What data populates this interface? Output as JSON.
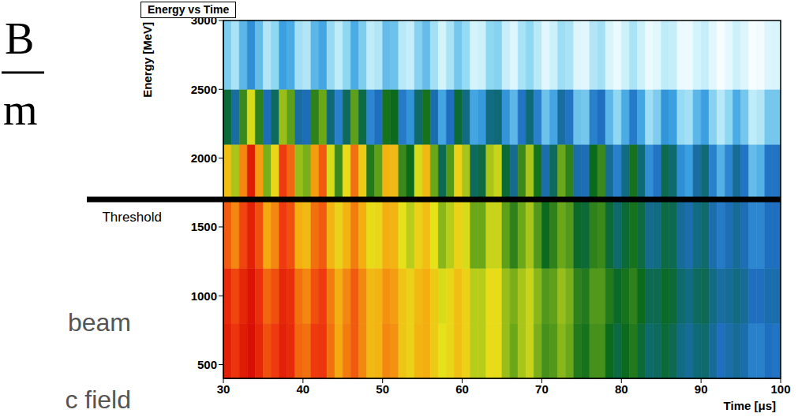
{
  "chart_data": {
    "type": "heatmap",
    "title": "Energy vs Time",
    "x_label": "Time [μs]",
    "y_label": "Energy [MeV]",
    "xlim": [
      30,
      100
    ],
    "xticks": [
      30,
      40,
      50,
      60,
      70,
      80,
      90,
      100
    ],
    "ylim": [
      400,
      3000
    ],
    "yticks": [
      500,
      1000,
      1500,
      2000,
      2500,
      3000
    ],
    "grid": false,
    "zlim": [
      0,
      100
    ],
    "x_edges": [
      30,
      31,
      32,
      33,
      34,
      35,
      36,
      37,
      38,
      39,
      40,
      41,
      42,
      43,
      44,
      45,
      46,
      47,
      48,
      49,
      50,
      51,
      52,
      53,
      54,
      55,
      56,
      57,
      58,
      59,
      60,
      61,
      62,
      63,
      64,
      65,
      66,
      67,
      68,
      69,
      70,
      71,
      72,
      73,
      74,
      75,
      76,
      77,
      78,
      79,
      80,
      81,
      82,
      83,
      84,
      85,
      86,
      87,
      88,
      89,
      90,
      91,
      92,
      93,
      94,
      95,
      96,
      97,
      98,
      99,
      100
    ],
    "y_edges": [
      400,
      800,
      1200,
      1700,
      2100,
      2500,
      3000
    ],
    "z": [
      [
        93,
        89,
        94,
        97,
        92,
        86,
        88,
        93,
        91,
        84,
        83,
        88,
        89,
        83,
        78,
        82,
        85,
        81,
        75,
        76,
        81,
        80,
        73,
        71,
        76,
        77,
        72,
        68,
        70,
        74,
        71,
        65,
        65,
        69,
        69,
        63,
        60,
        64,
        66,
        61,
        57,
        58,
        62,
        60,
        54,
        53,
        57,
        57,
        52,
        49,
        52,
        54,
        50,
        46,
        47,
        50,
        48,
        44,
        42,
        45,
        46,
        42,
        38,
        40,
        42,
        40,
        35,
        35,
        38,
        37
      ],
      [
        91,
        87,
        92,
        96,
        90,
        84,
        86,
        92,
        90,
        83,
        81,
        86,
        88,
        82,
        77,
        81,
        85,
        81,
        75,
        76,
        80,
        79,
        73,
        71,
        75,
        77,
        72,
        67,
        70,
        74,
        71,
        65,
        65,
        69,
        69,
        63,
        61,
        64,
        66,
        62,
        58,
        59,
        63,
        61,
        55,
        54,
        58,
        58,
        54,
        51,
        53,
        55,
        52,
        48,
        48,
        51,
        50,
        46,
        44,
        47,
        48,
        44,
        41,
        42,
        44,
        42,
        38,
        38,
        40,
        40
      ],
      [
        85,
        81,
        87,
        93,
        86,
        78,
        81,
        88,
        86,
        77,
        75,
        83,
        85,
        76,
        71,
        76,
        82,
        77,
        69,
        70,
        77,
        76,
        68,
        65,
        71,
        74,
        68,
        62,
        65,
        71,
        67,
        60,
        60,
        66,
        66,
        59,
        55,
        60,
        64,
        58,
        52,
        55,
        60,
        58,
        51,
        50,
        55,
        56,
        50,
        46,
        50,
        53,
        49,
        43,
        44,
        49,
        48,
        42,
        40,
        44,
        46,
        40,
        36,
        39,
        42,
        39,
        34,
        34,
        38,
        38
      ],
      [
        74,
        64,
        81,
        94,
        79,
        61,
        70,
        88,
        84,
        63,
        61,
        79,
        85,
        67,
        56,
        69,
        83,
        72,
        54,
        59,
        76,
        75,
        56,
        52,
        67,
        75,
        60,
        48,
        58,
        71,
        64,
        47,
        49,
        64,
        66,
        50,
        43,
        56,
        64,
        53,
        40,
        47,
        60,
        55,
        40,
        39,
        52,
        56,
        42,
        35,
        44,
        53,
        45,
        33,
        37,
        48,
        46,
        33,
        30,
        41,
        45,
        35,
        27,
        34,
        42,
        37,
        25,
        27,
        37,
        37
      ],
      [
        50,
        41,
        56,
        67,
        55,
        39,
        47,
        63,
        59,
        41,
        39,
        55,
        60,
        45,
        35,
        47,
        59,
        49,
        34,
        38,
        53,
        52,
        36,
        32,
        46,
        53,
        40,
        29,
        38,
        50,
        44,
        29,
        31,
        44,
        45,
        32,
        26,
        37,
        45,
        35,
        24,
        29,
        41,
        37,
        24,
        23,
        35,
        38,
        26,
        20,
        28,
        36,
        29,
        18,
        22,
        32,
        30,
        19,
        17,
        26,
        30,
        21,
        14,
        20,
        28,
        23,
        13,
        15,
        23,
        23
      ],
      [
        22,
        16,
        26,
        33,
        25,
        15,
        20,
        30,
        28,
        17,
        15,
        26,
        29,
        19,
        13,
        20,
        28,
        22,
        13,
        15,
        25,
        24,
        14,
        12,
        21,
        25,
        17,
        10,
        16,
        23,
        19,
        10,
        11,
        20,
        21,
        12,
        8,
        16,
        20,
        14,
        7,
        11,
        18,
        16,
        8,
        7,
        15,
        17,
        9,
        5,
        11,
        16,
        11,
        5,
        7,
        13,
        12,
        5,
        4,
        10,
        12,
        7,
        2,
        6,
        11,
        8,
        2,
        3,
        8,
        9
      ]
    ],
    "annotations": [
      {
        "text": "Threshold",
        "y": 1700
      }
    ],
    "side_texts": [
      "beam",
      "c field"
    ],
    "formula": {
      "numerator": "B",
      "denominator": "m"
    }
  }
}
